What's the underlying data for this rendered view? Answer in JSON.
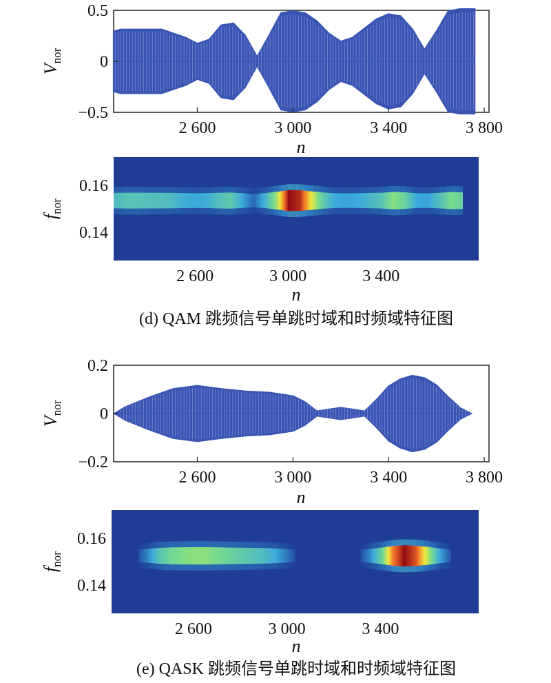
{
  "chart_data": [
    {
      "type": "line",
      "panel": "d-time",
      "xlabel": "n",
      "ylabel": {
        "main": "V",
        "sub": "nor"
      },
      "xlim": [
        2250,
        3820
      ],
      "ylim": [
        -0.5,
        0.5
      ],
      "x_ticks": [
        {
          "v": 2600,
          "label": "2 600"
        },
        {
          "v": 3000,
          "label": "3 000"
        },
        {
          "v": 3400,
          "label": "3 400"
        },
        {
          "v": 3800,
          "label": "3 800"
        }
      ],
      "y_ticks": [
        {
          "v": 0.5,
          "label": "0.5"
        },
        {
          "v": 0,
          "label": "0"
        },
        {
          "v": -0.5,
          "label": "−0.5"
        }
      ],
      "color": "#3a54b4",
      "envelope": {
        "x": [
          2250,
          2280,
          2350,
          2450,
          2550,
          2600,
          2650,
          2700,
          2750,
          2800,
          2850,
          2900,
          2950,
          3000,
          3050,
          3100,
          3150,
          3200,
          3250,
          3300,
          3350,
          3400,
          3450,
          3500,
          3550,
          3600,
          3650,
          3700,
          3760
        ],
        "amp": [
          0.3,
          0.32,
          0.32,
          0.32,
          0.24,
          0.18,
          0.22,
          0.36,
          0.38,
          0.26,
          0.05,
          0.26,
          0.48,
          0.5,
          0.48,
          0.4,
          0.28,
          0.2,
          0.24,
          0.33,
          0.42,
          0.47,
          0.45,
          0.32,
          0.12,
          0.3,
          0.5,
          0.52,
          0.52
        ]
      }
    },
    {
      "type": "heatmap",
      "panel": "d-tf",
      "xlabel": "n",
      "ylabel": {
        "main": "f",
        "sub": "nor"
      },
      "xlim": [
        2250,
        3820
      ],
      "ylim": [
        0.128,
        0.172
      ],
      "x_ticks": [
        {
          "v": 2600,
          "label": "2 600"
        },
        {
          "v": 3000,
          "label": "3 000"
        },
        {
          "v": 3400,
          "label": "3 400"
        }
      ],
      "y_ticks": [
        {
          "v": 0.16,
          "label": "0.16"
        },
        {
          "v": 0.14,
          "label": "0.14"
        }
      ],
      "background": "#1f3d94",
      "center_frequency": 0.1535,
      "ridge": {
        "x": [
          2250,
          2300,
          2350,
          2400,
          2450,
          2500,
          2550,
          2600,
          2650,
          2700,
          2750,
          2800,
          2850,
          2900,
          2950,
          3000,
          3050,
          3100,
          3150,
          3200,
          3250,
          3300,
          3350,
          3400,
          3450,
          3500,
          3550,
          3600,
          3650,
          3700,
          3750
        ],
        "intensity": [
          0.38,
          0.42,
          0.42,
          0.4,
          0.4,
          0.38,
          0.32,
          0.3,
          0.32,
          0.4,
          0.45,
          0.3,
          0.12,
          0.35,
          0.62,
          1.0,
          0.95,
          0.7,
          0.45,
          0.3,
          0.28,
          0.3,
          0.36,
          0.42,
          0.58,
          0.5,
          0.3,
          0.28,
          0.4,
          0.55,
          0.48
        ]
      }
    },
    {
      "type": "line",
      "panel": "e-time",
      "xlabel": "n",
      "ylabel": {
        "main": "V",
        "sub": "nor"
      },
      "xlim": [
        2250,
        3820
      ],
      "ylim": [
        -0.2,
        0.2
      ],
      "x_ticks": [
        {
          "v": 2600,
          "label": "2 600"
        },
        {
          "v": 3000,
          "label": "3 000"
        },
        {
          "v": 3400,
          "label": "3 400"
        },
        {
          "v": 3800,
          "label": "3 800"
        }
      ],
      "y_ticks": [
        {
          "v": 0.2,
          "label": "0.2"
        },
        {
          "v": 0,
          "label": "0"
        },
        {
          "v": -0.2,
          "label": "−0.2"
        }
      ],
      "color": "#3a54b4",
      "envelope": {
        "x": [
          2250,
          2300,
          2400,
          2500,
          2600,
          2700,
          2800,
          2900,
          3000,
          3050,
          3100,
          3150,
          3200,
          3250,
          3300,
          3350,
          3400,
          3450,
          3500,
          3550,
          3600,
          3650,
          3700,
          3750
        ],
        "amp": [
          0.0,
          0.03,
          0.07,
          0.105,
          0.118,
          0.105,
          0.095,
          0.09,
          0.075,
          0.05,
          0.012,
          0.02,
          0.027,
          0.02,
          0.012,
          0.06,
          0.115,
          0.145,
          0.16,
          0.15,
          0.12,
          0.07,
          0.025,
          0.0
        ]
      }
    },
    {
      "type": "heatmap",
      "panel": "e-tf",
      "xlabel": "n",
      "ylabel": {
        "main": "f",
        "sub": "nor"
      },
      "xlim": [
        2250,
        3820
      ],
      "ylim": [
        0.128,
        0.172
      ],
      "x_ticks": [
        {
          "v": 2600,
          "label": "2 600"
        },
        {
          "v": 3000,
          "label": "3 000"
        },
        {
          "v": 3400,
          "label": "3 400"
        }
      ],
      "y_ticks": [
        {
          "v": 0.16,
          "label": "0.16"
        },
        {
          "v": 0.14,
          "label": "0.14"
        }
      ],
      "background": "#1f3d94",
      "center_frequency": 0.1525,
      "ridge": {
        "x": [
          2250,
          2300,
          2350,
          2400,
          2450,
          2500,
          2550,
          2600,
          2650,
          2700,
          2750,
          2800,
          2850,
          2900,
          2950,
          3000,
          3050,
          3100,
          3150,
          3200,
          3250,
          3300,
          3350,
          3400,
          3450,
          3500,
          3550,
          3600,
          3650,
          3700,
          3750
        ],
        "intensity": [
          0.0,
          0.0,
          0.0,
          0.2,
          0.42,
          0.52,
          0.56,
          0.58,
          0.58,
          0.54,
          0.5,
          0.46,
          0.42,
          0.38,
          0.3,
          0.15,
          0.0,
          0.0,
          0.0,
          0.0,
          0.0,
          0.0,
          0.2,
          0.48,
          0.85,
          1.0,
          0.9,
          0.65,
          0.3,
          0.05,
          0.0
        ]
      }
    }
  ],
  "captions": {
    "d": "(d) QAM 跳频信号单跳时域和时频域特征图",
    "e": "(e) QASK 跳频信号单跳时域和时频域特征图"
  }
}
